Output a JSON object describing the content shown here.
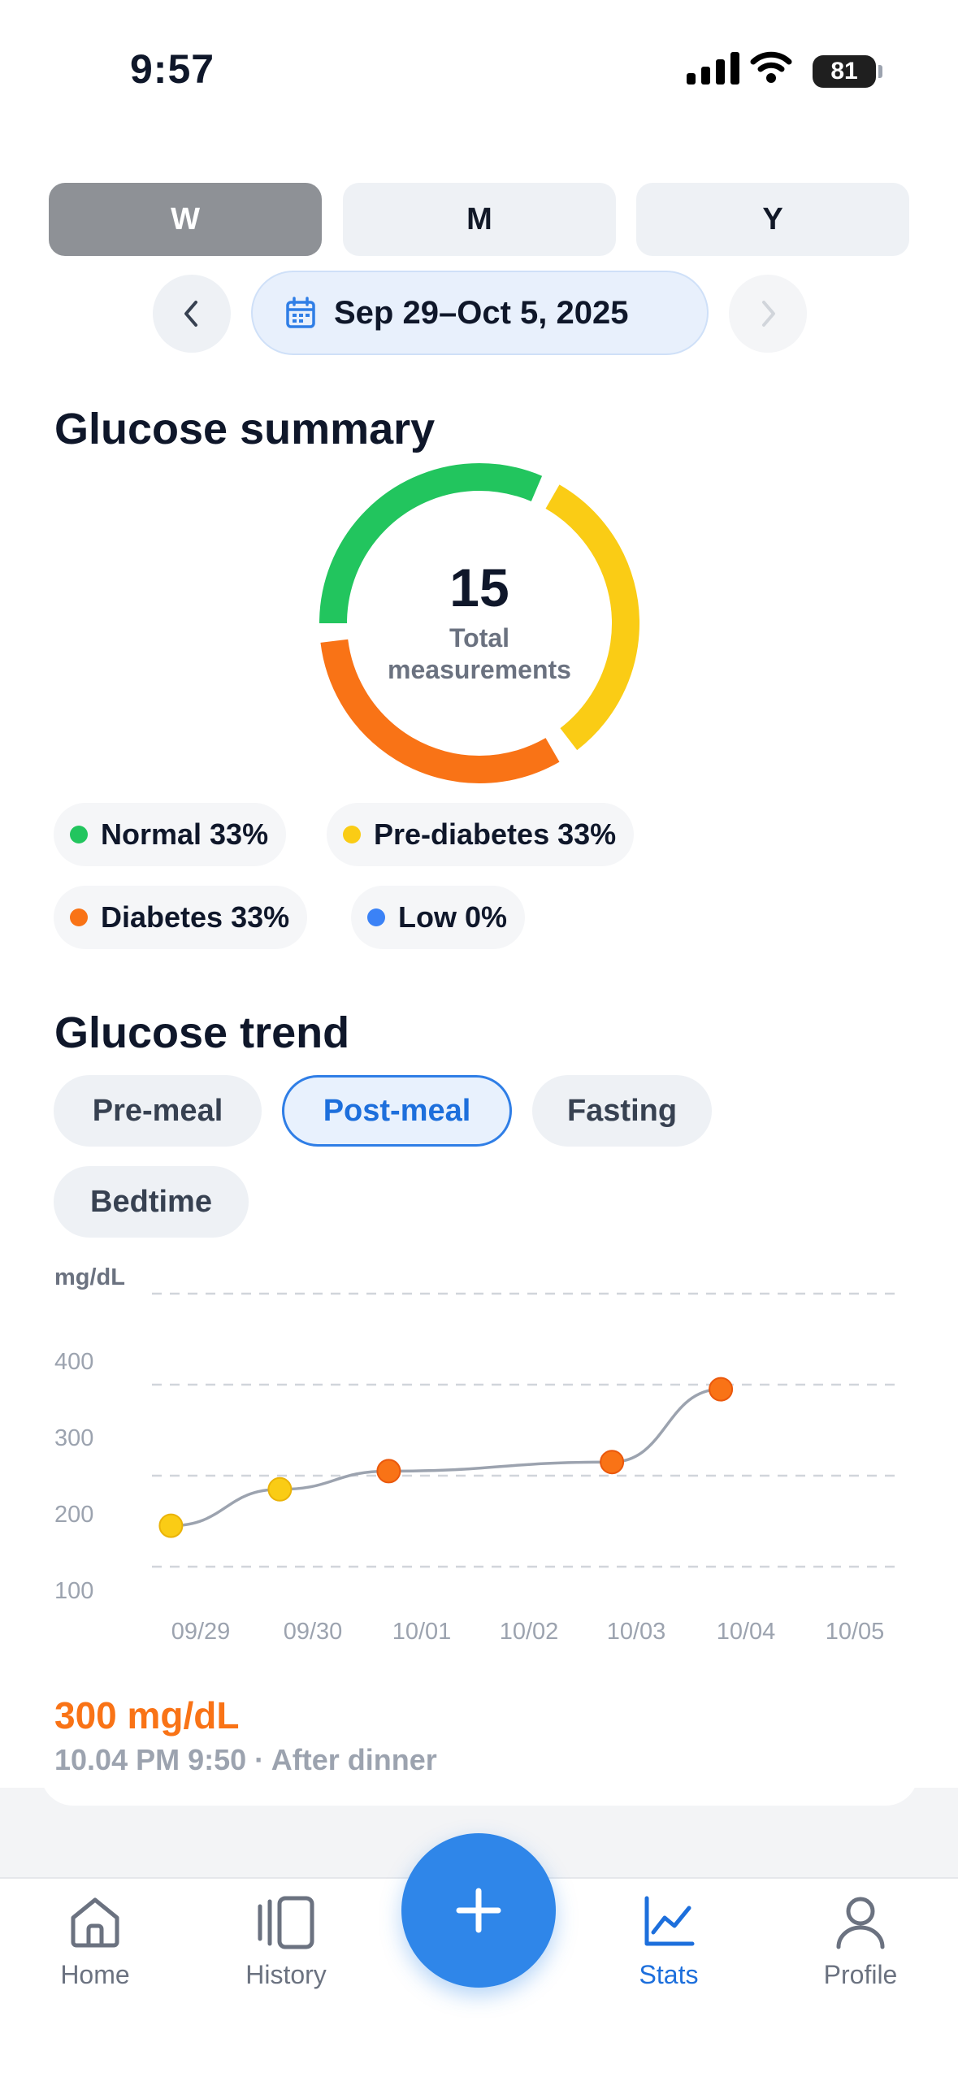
{
  "status_bar": {
    "time": "9:57",
    "battery": "81"
  },
  "period_tabs": [
    {
      "label": "W",
      "active": true
    },
    {
      "label": "M",
      "active": false
    },
    {
      "label": "Y",
      "active": false
    }
  ],
  "date_range": {
    "label": "Sep 29–Oct 5, 2025",
    "icon": "calendar-icon"
  },
  "summary": {
    "title": "Glucose summary",
    "total": "15",
    "total_label": "Total measurements",
    "legend": [
      {
        "label": "Normal 33%",
        "color": "#22c55e"
      },
      {
        "label": "Pre-diabetes 33%",
        "color": "#facc15"
      },
      {
        "label": "Diabetes 33%",
        "color": "#f97316"
      },
      {
        "label": "Low 0%",
        "color": "#3b82f6"
      }
    ]
  },
  "trend": {
    "title": "Glucose trend",
    "filters": [
      {
        "label": "Pre-meal",
        "active": false
      },
      {
        "label": "Post-meal",
        "active": true
      },
      {
        "label": "Fasting",
        "active": false
      },
      {
        "label": "Bedtime",
        "active": false
      }
    ],
    "selected_reading": {
      "value": "300 mg/dL",
      "meta": "10.04 PM 9:50 · After dinner"
    }
  },
  "chart_data": {
    "type": "line",
    "ylabel": "mg/dL",
    "yticks": [
      "400",
      "300",
      "200",
      "100"
    ],
    "ylim": [
      100,
      400
    ],
    "categories": [
      "09/29",
      "09/30",
      "10/01",
      "10/02",
      "10/03",
      "10/04",
      "10/05"
    ],
    "points": [
      {
        "x": 0.1,
        "y": 145,
        "status": "Pre-diabetes"
      },
      {
        "x": 1.1,
        "y": 185,
        "status": "Pre-diabetes"
      },
      {
        "x": 2.1,
        "y": 205,
        "status": "Diabetes"
      },
      {
        "x": 4.15,
        "y": 215,
        "status": "Diabetes"
      },
      {
        "x": 5.15,
        "y": 295,
        "status": "Diabetes"
      }
    ],
    "colors": {
      "Pre-diabetes": "#facc15",
      "Diabetes": "#f97316",
      "line": "#9ca3af",
      "grid": "#d1d5db"
    }
  },
  "fab": {
    "icon": "plus-icon"
  },
  "bottom_nav": [
    {
      "label": "Home",
      "icon": "home-icon",
      "active": false
    },
    {
      "label": "History",
      "icon": "history-icon",
      "active": false
    },
    {
      "label": "Stats",
      "icon": "stats-icon",
      "active": true
    },
    {
      "label": "Profile",
      "icon": "profile-icon",
      "active": false
    }
  ]
}
